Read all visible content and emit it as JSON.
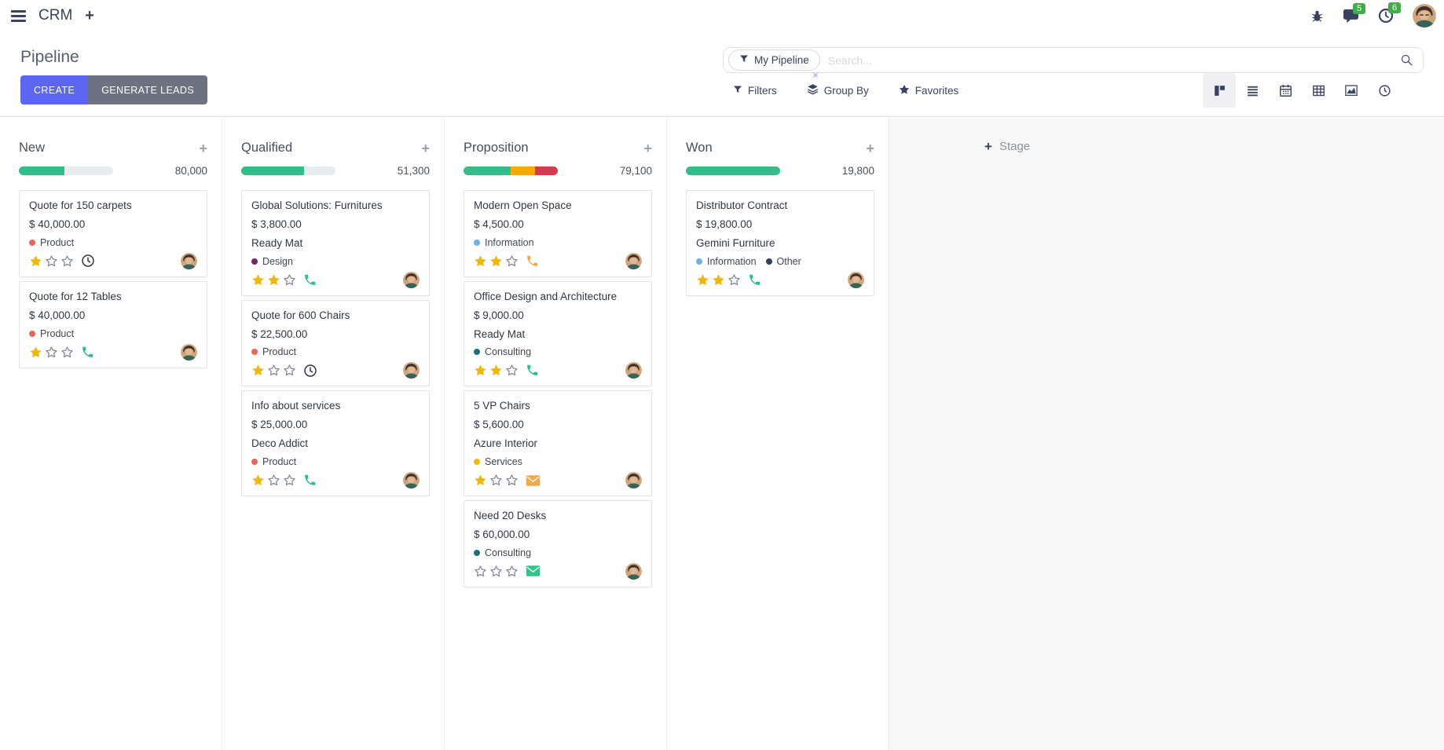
{
  "navbar": {
    "app_name": "CRM",
    "message_count": "5",
    "activity_count": "6"
  },
  "control_panel": {
    "title": "Pipeline",
    "buttons": {
      "create": "CREATE",
      "generate_leads": "GENERATE LEADS"
    },
    "search": {
      "facet_label": "My Pipeline",
      "remove_facet_label": "×",
      "placeholder": "Search..."
    },
    "menus": {
      "filters": "Filters",
      "group_by": "Group By",
      "favorites": "Favorites"
    }
  },
  "kanban": {
    "add_stage_label": "Stage",
    "add_stage_plus": "+",
    "add_record_label": "+",
    "progress_colors": {
      "green": "#34bd8b",
      "orange": "#fca903",
      "red": "#d63a4e"
    },
    "star_color": "#efb810",
    "columns": [
      {
        "name": "New",
        "amount": "80,000",
        "progress": [
          {
            "color": "#34bd8b",
            "pct": 48
          }
        ],
        "cards": [
          {
            "title": "Quote for 150 carpets",
            "amount": "$ 40,000.00",
            "tags": [
              {
                "label": "Product",
                "color": "#ea6758"
              }
            ],
            "stars": 1,
            "activity": {
              "icon": "clock",
              "color": "#32383e"
            }
          },
          {
            "title": "Quote for 12 Tables",
            "amount": "$ 40,000.00",
            "tags": [
              {
                "label": "Product",
                "color": "#ea6758"
              }
            ],
            "stars": 1,
            "activity": {
              "icon": "phone",
              "color": "#2ebd8c"
            }
          }
        ]
      },
      {
        "name": "Qualified",
        "amount": "51,300",
        "progress": [
          {
            "color": "#34bd8b",
            "pct": 67
          }
        ],
        "cards": [
          {
            "title": "Global Solutions: Furnitures",
            "amount": "$ 3,800.00",
            "company": "Ready Mat",
            "tags": [
              {
                "label": "Design",
                "color": "#752663"
              }
            ],
            "stars": 2,
            "activity": {
              "icon": "phone",
              "color": "#2ebd8c"
            }
          },
          {
            "title": "Quote for 600 Chairs",
            "amount": "$ 22,500.00",
            "tags": [
              {
                "label": "Product",
                "color": "#ea6758"
              }
            ],
            "stars": 1,
            "activity": {
              "icon": "clock",
              "color": "#32383e"
            }
          },
          {
            "title": "Info about services",
            "amount": "$ 25,000.00",
            "company": "Deco Addict",
            "tags": [
              {
                "label": "Product",
                "color": "#ea6758"
              }
            ],
            "stars": 1,
            "activity": {
              "icon": "phone",
              "color": "#2ebd8c"
            }
          }
        ]
      },
      {
        "name": "Proposition",
        "amount": "79,100",
        "progress": [
          {
            "color": "#34bd8b",
            "pct": 50
          },
          {
            "color": "#fca903",
            "pct": 26
          },
          {
            "color": "#d63a4e",
            "pct": 24
          }
        ],
        "cards": [
          {
            "title": "Modern Open Space",
            "amount": "$ 4,500.00",
            "tags": [
              {
                "label": "Information",
                "color": "#6eb1e4"
              }
            ],
            "stars": 2,
            "activity": {
              "icon": "phone",
              "color": "#efa94f"
            }
          },
          {
            "title": "Office Design and Architecture",
            "amount": "$ 9,000.00",
            "company": "Ready Mat",
            "tags": [
              {
                "label": "Consulting",
                "color": "#1f6f80"
              }
            ],
            "stars": 2,
            "activity": {
              "icon": "phone",
              "color": "#2ebd8c"
            }
          },
          {
            "title": "5 VP Chairs",
            "amount": "$ 5,600.00",
            "company": "Azure Interior",
            "tags": [
              {
                "label": "Services",
                "color": "#eebc0d"
              }
            ],
            "stars": 1,
            "activity": {
              "icon": "envelope",
              "color": "#efa94f"
            }
          },
          {
            "title": "Need 20 Desks",
            "amount": "$ 60,000.00",
            "tags": [
              {
                "label": "Consulting",
                "color": "#1f6f80"
              }
            ],
            "stars": 0,
            "activity": {
              "icon": "envelope",
              "color": "#35c28e"
            }
          }
        ]
      },
      {
        "name": "Won",
        "amount": "19,800",
        "progress": [
          {
            "color": "#34bd8b",
            "pct": 100
          }
        ],
        "cards": [
          {
            "title": "Distributor Contract",
            "amount": "$ 19,800.00",
            "company": "Gemini Furniture",
            "tags": [
              {
                "label": "Information",
                "color": "#6eb1e4"
              },
              {
                "label": "Other",
                "color": "#31425f"
              }
            ],
            "stars": 2,
            "activity": {
              "icon": "phone",
              "color": "#2ebd8c"
            }
          }
        ]
      }
    ]
  }
}
